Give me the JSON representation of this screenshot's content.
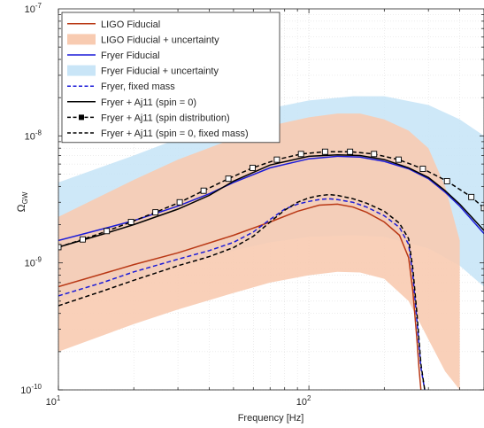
{
  "chart_data": {
    "type": "line",
    "title": "",
    "xlabel": "Frequency [Hz]",
    "ylabel": "Ω_GW",
    "xscale": "log",
    "yscale": "log",
    "xlim": [
      10,
      500
    ],
    "ylim": [
      1e-10,
      1e-07
    ],
    "grid": true,
    "legend_position": "top-left",
    "x_ticks": [
      {
        "value": 10,
        "base": "10",
        "exp": "1"
      },
      {
        "value": 100,
        "base": "10",
        "exp": "2"
      }
    ],
    "y_ticks": [
      {
        "value": 1e-10,
        "base": "10",
        "exp": "-10"
      },
      {
        "value": 1e-09,
        "base": "10",
        "exp": "-9"
      },
      {
        "value": 1e-08,
        "base": "10",
        "exp": "-8"
      },
      {
        "value": 1e-07,
        "base": "10",
        "exp": "-7"
      }
    ],
    "bands": [
      {
        "name": "LIGO Fiducial + uncertainty",
        "color": "#f8cbb1",
        "x": [
          10,
          20,
          30,
          50,
          70,
          100,
          130,
          160,
          200,
          250,
          300,
          350,
          400
        ],
        "upper": [
          2.3e-09,
          4.5e-09,
          6.5e-09,
          9.5e-09,
          1.2e-08,
          1.4e-08,
          1.5e-08,
          1.5e-08,
          1.35e-08,
          1.1e-08,
          8e-09,
          4e-09,
          1.5e-09
        ],
        "lower": [
          2e-10,
          3.3e-10,
          4.3e-10,
          5.8e-10,
          7e-10,
          8e-10,
          8.5e-10,
          8.4e-10,
          7.5e-10,
          5e-10,
          2.5e-10,
          1.4e-10,
          1e-10
        ]
      },
      {
        "name": "Fryer Fiducial + uncertainty",
        "color": "#c9e5f7",
        "x": [
          10,
          20,
          30,
          50,
          70,
          100,
          150,
          200,
          300,
          400,
          500
        ],
        "upper": [
          4.3e-09,
          7e-09,
          9.5e-09,
          1.35e-08,
          1.65e-08,
          1.9e-08,
          2.05e-08,
          2.05e-08,
          1.75e-08,
          1.35e-08,
          1e-08
        ],
        "lower": [
          5e-10,
          7.5e-10,
          9.5e-10,
          1.25e-09,
          1.45e-09,
          1.6e-09,
          1.65e-09,
          1.6e-09,
          1.3e-09,
          9.5e-10,
          6.5e-10
        ]
      }
    ],
    "series": [
      {
        "name": "LIGO Fiducial",
        "color": "#b93815",
        "dash": "solid",
        "marker": false,
        "x": [
          10,
          15,
          20,
          30,
          50,
          70,
          90,
          110,
          130,
          150,
          170,
          200,
          230,
          250,
          260,
          270,
          275,
          280
        ],
        "y": [
          6.5e-10,
          8.2e-10,
          9.7e-10,
          1.2e-09,
          1.65e-09,
          2.1e-09,
          2.55e-09,
          2.85e-09,
          2.9e-09,
          2.75e-09,
          2.5e-09,
          2.1e-09,
          1.65e-09,
          1.1e-09,
          6e-10,
          2.5e-10,
          1.5e-10,
          1e-10
        ]
      },
      {
        "name": "Fryer Fiducial",
        "color": "#1c1cd8",
        "dash": "solid",
        "marker": false,
        "x": [
          10,
          15,
          20,
          30,
          40,
          50,
          70,
          100,
          130,
          160,
          200,
          250,
          300,
          350,
          400,
          500
        ],
        "y": [
          1.5e-09,
          1.85e-09,
          2.15e-09,
          2.8e-09,
          3.5e-09,
          4.3e-09,
          5.6e-09,
          6.6e-09,
          6.9e-09,
          6.8e-09,
          6.3e-09,
          5.5e-09,
          4.6e-09,
          3.6e-09,
          2.8e-09,
          1.7e-09
        ]
      },
      {
        "name": "Fryer, fixed mass",
        "color": "#1c1cd8",
        "dash": "dashed",
        "marker": false,
        "x": [
          10,
          15,
          20,
          30,
          40,
          50,
          60,
          70,
          80,
          90,
          100,
          110,
          120,
          130,
          150,
          170,
          200,
          230,
          250,
          260,
          270,
          280,
          290
        ],
        "y": [
          5.5e-10,
          7e-10,
          8.5e-10,
          1.07e-09,
          1.25e-09,
          1.45e-09,
          1.75e-09,
          2.2e-09,
          2.65e-09,
          2.9e-09,
          3.05e-09,
          3.15e-09,
          3.2e-09,
          3.15e-09,
          3e-09,
          2.75e-09,
          2.35e-09,
          1.9e-09,
          1.4e-09,
          8e-10,
          3.5e-10,
          1.5e-10,
          1e-10
        ]
      },
      {
        "name": "Fryer + Aj11 (spin = 0)",
        "color": "#000000",
        "dash": "solid",
        "marker": false,
        "x": [
          10,
          15,
          20,
          30,
          40,
          50,
          70,
          100,
          130,
          160,
          200,
          250,
          300,
          350,
          400,
          500
        ],
        "y": [
          1.33e-09,
          1.68e-09,
          2e-09,
          2.65e-09,
          3.4e-09,
          4.4e-09,
          5.9e-09,
          6.9e-09,
          7.1e-09,
          7e-09,
          6.5e-09,
          5.6e-09,
          4.7e-09,
          3.7e-09,
          2.9e-09,
          1.8e-09
        ]
      },
      {
        "name": "Fryer + Aj11 (spin distribution)",
        "color": "#000000",
        "dash": "dashed",
        "marker": true,
        "x": [
          10,
          12.5,
          15.6,
          19.5,
          24.4,
          30.5,
          38,
          47.7,
          59.6,
          74.5,
          93,
          116,
          146,
          182,
          228,
          285,
          356,
          445,
          500
        ],
        "y": [
          1.33e-09,
          1.53e-09,
          1.78e-09,
          2.1e-09,
          2.5e-09,
          3e-09,
          3.7e-09,
          4.6e-09,
          5.6e-09,
          6.5e-09,
          7.2e-09,
          7.5e-09,
          7.5e-09,
          7.2e-09,
          6.5e-09,
          5.5e-09,
          4.4e-09,
          3.3e-09,
          2.7e-09
        ]
      },
      {
        "name": "Fryer + Aj11 (spin = 0, fixed mass)",
        "color": "#000000",
        "dash": "dashed",
        "marker": false,
        "x": [
          10,
          15,
          20,
          30,
          40,
          50,
          60,
          70,
          80,
          90,
          100,
          110,
          120,
          130,
          150,
          170,
          200,
          230,
          250,
          260,
          270,
          280,
          290
        ],
        "y": [
          4.6e-10,
          6e-10,
          7.3e-10,
          9.5e-10,
          1.12e-09,
          1.32e-09,
          1.62e-09,
          2.1e-09,
          2.6e-09,
          3e-09,
          3.25e-09,
          3.38e-09,
          3.45e-09,
          3.4e-09,
          3.2e-09,
          2.95e-09,
          2.55e-09,
          2.05e-09,
          1.55e-09,
          9e-10,
          4e-10,
          1.6e-10,
          1e-10
        ]
      }
    ],
    "legend_order": [
      "LIGO Fiducial",
      "LIGO Fiducial + uncertainty",
      "Fryer Fiducial",
      "Fryer Fiducial + uncertainty",
      "Fryer, fixed mass",
      "Fryer + Aj11 (spin = 0)",
      "Fryer + Aj11 (spin distribution)",
      "Fryer + Aj11 (spin = 0, fixed mass)"
    ]
  }
}
